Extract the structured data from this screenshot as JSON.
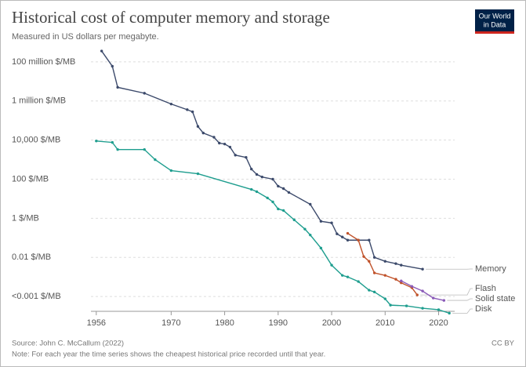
{
  "chart_data": {
    "type": "line",
    "title": "Historical cost of computer memory and storage",
    "subtitle": "Measured in US dollars per megabyte.",
    "source": "Source: John C. McCallum (2022)",
    "note": "Note: For each year the time series shows the cheapest historical price recorded until that year.",
    "license": "CC BY",
    "logo": [
      "Our World",
      "in Data"
    ],
    "log_scale": true,
    "grid": true,
    "xlim": [
      1955,
      2023
    ],
    "xticks": [
      1956,
      1970,
      1980,
      1990,
      2000,
      2010,
      2020
    ],
    "ylim": [
      1e-05,
      1000000000
    ],
    "yticks": [
      {
        "value": 100000000,
        "label": "100 million $/MB"
      },
      {
        "value": 1000000,
        "label": "1 million $/MB"
      },
      {
        "value": 10000,
        "label": "10,000 $/MB"
      },
      {
        "value": 100,
        "label": "100 $/MB"
      },
      {
        "value": 1,
        "label": "1 $/MB"
      },
      {
        "value": 0.01,
        "label": "0.01 $/MB"
      },
      {
        "value": 0.0001,
        "label": "<0.001 $/MB"
      }
    ],
    "series": [
      {
        "name": "Memory",
        "color": "#3c4a6b",
        "x": [
          1957,
          1959,
          1960,
          1965,
          1970,
          1973,
          1974,
          1975,
          1976,
          1978,
          1979,
          1980,
          1981,
          1982,
          1984,
          1985,
          1986,
          1987,
          1989,
          1990,
          1991,
          1992,
          1996,
          1998,
          2000,
          2001,
          2002,
          2003,
          2005,
          2007,
          2008,
          2010,
          2012,
          2013,
          2017
        ],
        "values": [
          360000000,
          60000000,
          5000000,
          2500000,
          700000,
          360000,
          280000,
          50000,
          23000,
          14000,
          7000,
          6300,
          4400,
          1700,
          1300,
          330,
          175,
          130,
          100,
          44,
          33,
          21,
          5.2,
          0.7,
          0.58,
          0.16,
          0.11,
          0.076,
          0.076,
          0.076,
          0.01,
          0.0063,
          0.0048,
          0.004,
          0.0025
        ]
      },
      {
        "name": "Flash",
        "color": "#c0522a",
        "x": [
          2003,
          2005,
          2006,
          2007,
          2008,
          2010,
          2012,
          2013,
          2015,
          2016
        ],
        "values": [
          0.17,
          0.076,
          0.011,
          0.0063,
          0.0016,
          0.0012,
          0.00076,
          0.0005,
          0.00028,
          0.00012
        ]
      },
      {
        "name": "Solid state",
        "color": "#8a5bb8",
        "x": [
          2013,
          2015,
          2017,
          2019,
          2021
        ],
        "values": [
          0.00063,
          0.00033,
          0.00019,
          8.3e-05,
          6.3e-05
        ]
      },
      {
        "name": "Disk",
        "color": "#1f9e8f",
        "x": [
          1956,
          1959,
          1960,
          1965,
          1967,
          1970,
          1975,
          1985,
          1986,
          1988,
          1989,
          1990,
          1991,
          1993,
          1995,
          1996,
          1998,
          2000,
          2002,
          2003,
          2005,
          2007,
          2008,
          2010,
          2011,
          2014,
          2017,
          2020,
          2022
        ],
        "values": [
          9000,
          7600,
          3300,
          3300,
          1000,
          275,
          190,
          30,
          23,
          11,
          6.9,
          3,
          2.5,
          0.83,
          0.28,
          0.14,
          0.03,
          0.004,
          0.0012,
          0.001,
          0.00058,
          0.00021,
          0.00017,
          7.6e-05,
          3.6e-05,
          3.3e-05,
          2.5e-05,
          2.1e-05,
          1.4e-05
        ]
      }
    ]
  }
}
